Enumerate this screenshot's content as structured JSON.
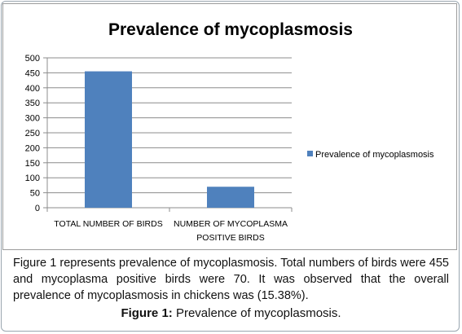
{
  "chart_data": {
    "type": "bar",
    "title": "Prevalence of mycoplasmosis",
    "categories": [
      "TOTAL NUMBER OF BIRDS",
      "NUMBER OF MYCOPLASMA POSITIVE BIRDS"
    ],
    "category_lines": [
      [
        "TOTAL NUMBER OF BIRDS"
      ],
      [
        "NUMBER OF MYCOPLASMA",
        "POSITIVE BIRDS"
      ]
    ],
    "series": [
      {
        "name": "Prevalence of mycoplasmosis",
        "values": [
          455,
          70
        ],
        "color": "#4f81bd"
      }
    ],
    "ylim": [
      0,
      500
    ],
    "yticks": [
      0,
      50,
      100,
      150,
      200,
      250,
      300,
      350,
      400,
      450,
      500
    ],
    "grid": true,
    "legend_position": "right"
  },
  "caption": {
    "text": "Figure 1 represents prevalence of mycoplasmosis. Total numbers of birds were 455 and mycoplasma positive birds were 70. It was observed that the overall prevalence of mycoplasmosis in chickens was (15.38%).",
    "figure_label": "Figure 1:",
    "figure_title": "Prevalence of mycoplasmosis."
  }
}
